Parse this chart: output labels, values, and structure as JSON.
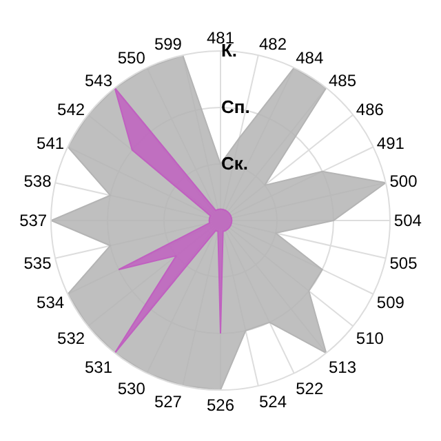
{
  "chart_data": {
    "type": "radar",
    "categories": [
      "481",
      "482",
      "484",
      "485",
      "486",
      "491",
      "500",
      "504",
      "505",
      "509",
      "510",
      "513",
      "522",
      "524",
      "526",
      "527",
      "530",
      "531",
      "532",
      "534",
      "535",
      "537",
      "538",
      "541",
      "542",
      "543",
      "550",
      "599"
    ],
    "series": [
      {
        "color": "#b4b4b4",
        "values": [
          1,
          1.5,
          3,
          3,
          1,
          2,
          3,
          2,
          1,
          2,
          2,
          3,
          2,
          2,
          3,
          3,
          3,
          3,
          3,
          3,
          2,
          3,
          2,
          3,
          3,
          3,
          3,
          3
        ]
      },
      {
        "color": "#c060c0",
        "values": [
          0.2,
          0.2,
          0.2,
          0.2,
          0.2,
          0.2,
          0.2,
          0.2,
          0.2,
          0.2,
          0.2,
          0.2,
          0.2,
          0.2,
          2,
          0.2,
          0.2,
          3,
          1,
          2,
          0.2,
          0.2,
          0.2,
          0.2,
          2,
          3,
          0.2,
          0.2
        ]
      }
    ],
    "ylim": [
      0,
      3
    ],
    "yticks": [
      {
        "value": 1,
        "label": "Ск."
      },
      {
        "value": 2,
        "label": "Сп."
      },
      {
        "value": 3,
        "label": "К."
      }
    ],
    "grid": true
  }
}
